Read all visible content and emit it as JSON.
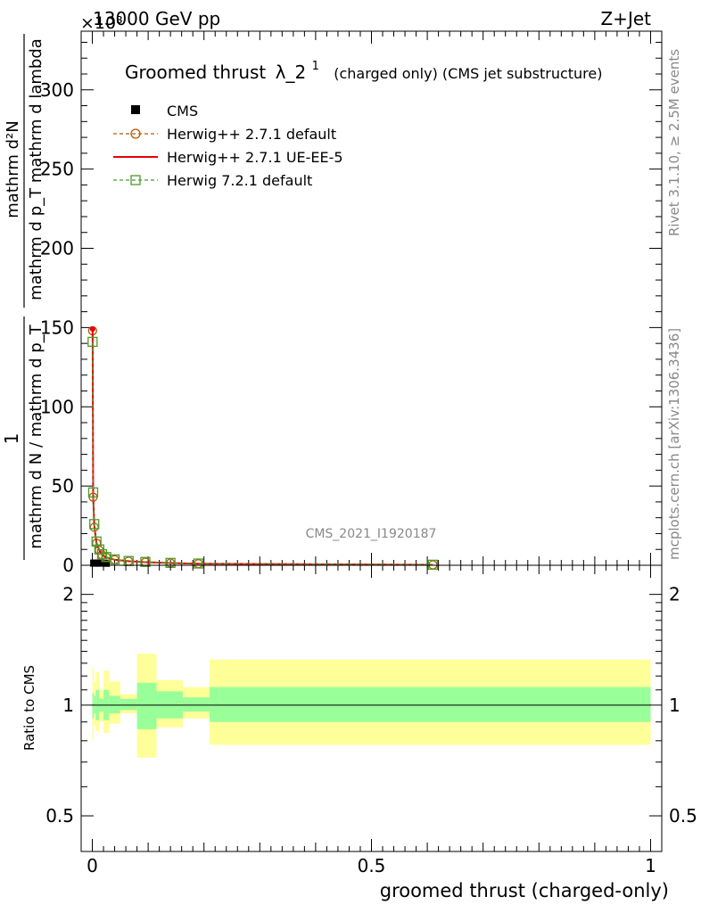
{
  "header": {
    "energy": "13000 GeV pp",
    "process": "Z+Jet",
    "exponent": "×10³"
  },
  "side_labels": {
    "rivet": "Rivet 3.1.10, ≥ 2.5M events",
    "mcplots": "mcplots.cern.ch [arXiv:1306.3436]"
  },
  "watermark": "CMS_2021_I1920187",
  "chart_data": [
    {
      "type": "line",
      "title": "Groomed thrust λ_2¹",
      "title_main": "Groomed thrust",
      "title_symbol": "λ_2",
      "title_sup": "1",
      "title_note": "(charged only) (CMS jet substructure)",
      "ylabel_numer": "mathrm d²N",
      "ylabel_denom": "mathrm d p_T mathrm d lambda",
      "ylabel_prefix": "1",
      "ylabel_prefix_denom": "mathrm d N / mathrm d p_T",
      "xlim": [
        -0.02,
        1.02
      ],
      "ylim": [
        0,
        337
      ],
      "y_scale_exponent": 3,
      "yticks": [
        0,
        50,
        100,
        150,
        200,
        250,
        300
      ],
      "ytick_labels": [
        "0",
        "50",
        "100",
        "150",
        "200",
        "250",
        "300"
      ],
      "legend_position": "top-left",
      "series": [
        {
          "name": "CMS",
          "color": "#000000",
          "marker": "square-filled",
          "x": [
            0.0025,
            0.0075,
            0.015,
            0.025
          ],
          "y": [
            0.8,
            0.8,
            0.8,
            0.7
          ]
        },
        {
          "name": "Herwig++ 2.7.1 default",
          "color": "#b35900",
          "marker": "circle-open",
          "line": "dashed",
          "x": [
            0.0005,
            0.0015,
            0.0035,
            0.0075,
            0.0125,
            0.0175,
            0.025,
            0.04,
            0.065,
            0.095,
            0.14,
            0.19,
            0.61
          ],
          "y": [
            148,
            43,
            24,
            14,
            9.5,
            6.5,
            5,
            3.5,
            2.6,
            2.0,
            1.4,
            1.0,
            0.3
          ]
        },
        {
          "name": "Herwig++ 2.7.1 UE-EE-5",
          "color": "#e8000b",
          "marker": "none",
          "line": "solid",
          "x": [
            0.0005,
            0.0015,
            0.0035,
            0.0075,
            0.0125,
            0.0175,
            0.025,
            0.04,
            0.065,
            0.095,
            0.14,
            0.19,
            0.61
          ],
          "y": [
            149,
            44,
            25,
            14,
            9.5,
            6.5,
            5,
            3.5,
            2.6,
            2.0,
            1.4,
            1.0,
            0.3
          ]
        },
        {
          "name": "Herwig 7.2.1 default",
          "color": "#4c9a2a",
          "marker": "square-open",
          "line": "dashed",
          "x": [
            0.0005,
            0.0015,
            0.0035,
            0.0075,
            0.0125,
            0.0175,
            0.025,
            0.04,
            0.065,
            0.095,
            0.14,
            0.19,
            0.61
          ],
          "y": [
            141,
            46,
            26,
            15,
            10,
            7,
            5.2,
            3.7,
            2.7,
            2.1,
            1.5,
            1.1,
            0.35
          ]
        }
      ]
    },
    {
      "type": "area",
      "ylabel": "Ratio to CMS",
      "xlabel": "groomed thrust (charged-only)",
      "xlim": [
        -0.02,
        1.02
      ],
      "ylim": [
        0.4,
        2.4
      ],
      "y_scale": "log",
      "yticks": [
        0.5,
        1,
        2
      ],
      "ytick_labels": [
        "0.5",
        "1",
        "2"
      ],
      "xticks": [
        0,
        0.5,
        1
      ],
      "xtick_labels": [
        "0",
        "0.5",
        "1"
      ],
      "reference_line": 1,
      "band_colors": {
        "inner": "#99ff99",
        "outer": "#ffff99"
      },
      "bins": [
        {
          "x0": 0.0,
          "x1": 0.0025,
          "inner": [
            0.92,
            1.08
          ],
          "outer": [
            0.8,
            1.27
          ]
        },
        {
          "x0": 0.0025,
          "x1": 0.006,
          "inner": [
            0.95,
            1.06
          ],
          "outer": [
            0.88,
            1.16
          ]
        },
        {
          "x0": 0.006,
          "x1": 0.012,
          "inner": [
            0.91,
            1.1
          ],
          "outer": [
            0.85,
            1.23
          ]
        },
        {
          "x0": 0.012,
          "x1": 0.02,
          "inner": [
            0.96,
            1.04
          ],
          "outer": [
            0.9,
            1.1
          ]
        },
        {
          "x0": 0.02,
          "x1": 0.03,
          "inner": [
            0.91,
            1.1
          ],
          "outer": [
            0.84,
            1.24
          ]
        },
        {
          "x0": 0.03,
          "x1": 0.05,
          "inner": [
            0.95,
            1.06
          ],
          "outer": [
            0.89,
            1.16
          ]
        },
        {
          "x0": 0.05,
          "x1": 0.08,
          "inner": [
            0.97,
            1.04
          ],
          "outer": [
            0.95,
            1.07
          ]
        },
        {
          "x0": 0.08,
          "x1": 0.115,
          "inner": [
            0.86,
            1.15
          ],
          "outer": [
            0.72,
            1.38
          ]
        },
        {
          "x0": 0.115,
          "x1": 0.162,
          "inner": [
            0.92,
            1.09
          ],
          "outer": [
            0.87,
            1.17
          ]
        },
        {
          "x0": 0.162,
          "x1": 0.21,
          "inner": [
            0.96,
            1.05
          ],
          "outer": [
            0.92,
            1.12
          ]
        },
        {
          "x0": 0.21,
          "x1": 1.0,
          "inner": [
            0.9,
            1.12
          ],
          "outer": [
            0.78,
            1.33
          ]
        }
      ]
    }
  ]
}
